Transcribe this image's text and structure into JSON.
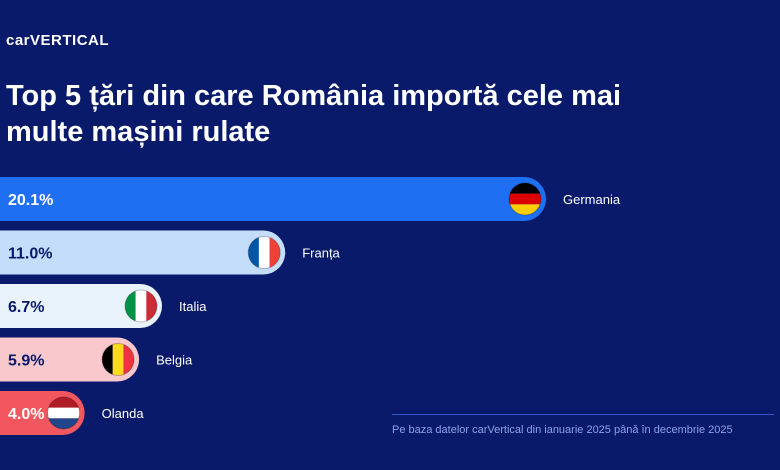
{
  "brand": {
    "logo_text": "carVERTICAL"
  },
  "title": "Top 5 țări din care România importă cele mai multe mașini rulate",
  "footer": {
    "note": "Pe baza datelor carVertical din ianuarie 2025 până în decembrie 2025"
  },
  "colors": {
    "background": "#0a1a6b",
    "bars": [
      "#1f6ff2",
      "#c3ddfb",
      "#e9f3fb",
      "#f9c8cc",
      "#f2575f"
    ],
    "bar_text": [
      "#ffffff",
      "#0a1a6b",
      "#0a1a6b",
      "#0a1a6b",
      "#ffffff"
    ]
  },
  "chart_data": {
    "type": "bar",
    "orientation": "horizontal",
    "title": "Top 5 țări din care România importă cele mai multe mașini rulate",
    "categories": [
      "Germania",
      "Franța",
      "Italia",
      "Belgia",
      "Olanda"
    ],
    "values": [
      20.1,
      11.0,
      6.7,
      5.9,
      4.0
    ],
    "value_labels": [
      "20.1%",
      "11.0%",
      "6.7%",
      "5.9%",
      "4.0%"
    ],
    "flags": [
      "germany-flag-icon",
      "france-flag-icon",
      "italy-flag-icon",
      "belgium-flag-icon",
      "netherlands-flag-icon"
    ],
    "unit": "%",
    "xlim": [
      0,
      20.1
    ],
    "grid": false,
    "legend": "none"
  }
}
